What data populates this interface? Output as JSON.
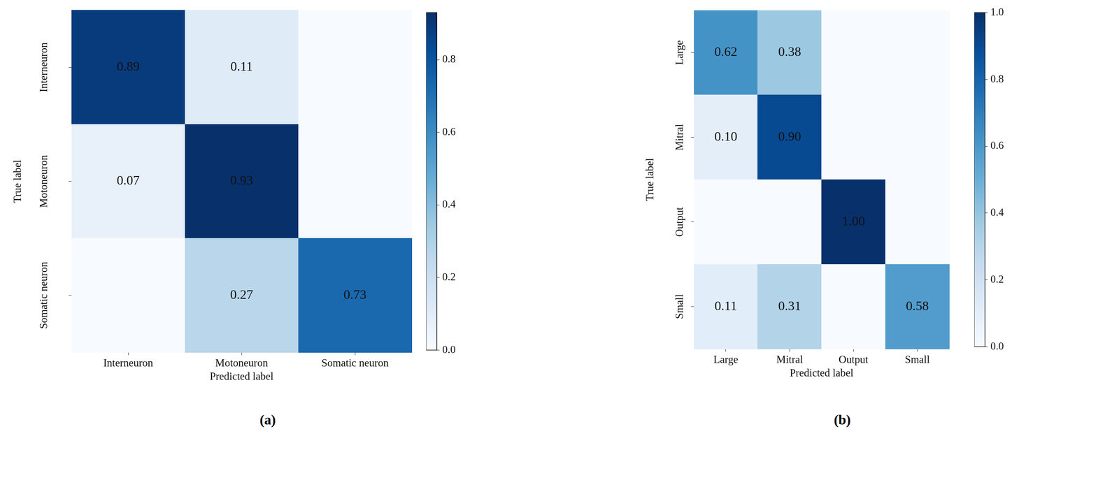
{
  "chart_data": [
    {
      "type": "heatmap",
      "caption": "(a)",
      "x_label": "Predicted label",
      "y_label": "True label",
      "x_categories": [
        "Interneuron",
        "Motoneuron",
        "Somatic neuron"
      ],
      "y_categories": [
        "Interneuron",
        "Motoneuron",
        "Somatic neuron"
      ],
      "cells": [
        [
          0.89,
          0.11,
          0
        ],
        [
          0.07,
          0.93,
          0
        ],
        [
          0,
          0.27,
          0.73
        ]
      ],
      "value_labels": [
        [
          "0.89",
          "0.11",
          null
        ],
        [
          "0.07",
          "0.93",
          null
        ],
        [
          null,
          "0.27",
          "0.73"
        ]
      ],
      "data_labels": true,
      "color": "Blues",
      "colorbar": {
        "range": [
          0,
          0.93
        ],
        "ticks": [
          {
            "value": 0,
            "label": "0.0"
          },
          {
            "value": 0.2,
            "label": "0.2"
          },
          {
            "value": 0.4,
            "label": "0.4"
          },
          {
            "value": 0.6,
            "label": "0.6"
          },
          {
            "value": 0.8,
            "label": "0.8"
          }
        ]
      }
    },
    {
      "type": "heatmap",
      "caption": "(b)",
      "x_label": "Predicted label",
      "y_label": "True label",
      "x_categories": [
        "Large",
        "Mitral",
        "Output",
        "Small"
      ],
      "y_categories": [
        "Large",
        "Mitral",
        "Output",
        "Small"
      ],
      "cells": [
        [
          0.62,
          0.38,
          0,
          0
        ],
        [
          0.1,
          0.9,
          0,
          0
        ],
        [
          0,
          0,
          1.0,
          0
        ],
        [
          0.11,
          0.31,
          0,
          0.58
        ]
      ],
      "value_labels": [
        [
          "0.62",
          "0.38",
          null,
          null
        ],
        [
          "0.10",
          "0.90",
          null,
          null
        ],
        [
          null,
          null,
          "1.00",
          null
        ],
        [
          "0.11",
          "0.31",
          null,
          "0.58"
        ]
      ],
      "data_labels": true,
      "color": "Blues",
      "colorbar": {
        "range": [
          0,
          1
        ],
        "ticks": [
          {
            "value": 0,
            "label": "0.0"
          },
          {
            "value": 0.2,
            "label": "0.2"
          },
          {
            "value": 0.4,
            "label": "0.4"
          },
          {
            "value": 0.6,
            "label": "0.6"
          },
          {
            "value": 0.8,
            "label": "0.8"
          },
          {
            "value": 1,
            "label": "1.0"
          }
        ]
      }
    }
  ]
}
